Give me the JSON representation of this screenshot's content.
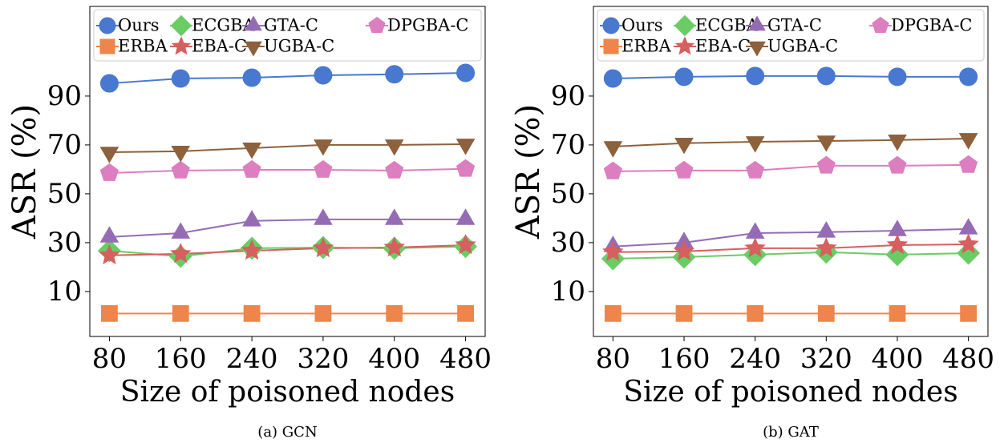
{
  "chart_data": [
    {
      "type": "line",
      "caption": "(a) GCN",
      "xlabel": "Size of poisoned nodes",
      "ylabel": "ASR (%)",
      "x": [
        80,
        160,
        240,
        320,
        400,
        480
      ],
      "xlim": [
        58,
        502
      ],
      "xticks": [
        80,
        160,
        240,
        320,
        400,
        480
      ],
      "ylim": [
        -8.4,
        126.7
      ],
      "yticks": [
        10,
        30,
        50,
        70,
        90
      ],
      "legend": "upper center",
      "grid": false,
      "series": [
        {
          "name": "Ours",
          "color": "#4878d0",
          "marker": "circle",
          "values": [
            95.2,
            97.2,
            97.5,
            98.5,
            98.9,
            99.5
          ]
        },
        {
          "name": "ECGBA",
          "color": "#6acc64",
          "marker": "diamond",
          "values": [
            26.7,
            24.4,
            27.7,
            28.0,
            27.7,
            28.4
          ]
        },
        {
          "name": "GTA-C",
          "color": "#956cb4",
          "marker": "triangle-up",
          "values": [
            32.3,
            33.9,
            38.9,
            39.5,
            39.5,
            39.5
          ]
        },
        {
          "name": "DPGBA-C",
          "color": "#dc7ec0",
          "marker": "pentagon",
          "values": [
            58.5,
            59.5,
            59.8,
            59.8,
            59.5,
            60.2
          ]
        },
        {
          "name": "ERBA",
          "color": "#ee854a",
          "marker": "square",
          "values": [
            1,
            1,
            1,
            1,
            1,
            1
          ]
        },
        {
          "name": "EBA-C",
          "color": "#d65f5f",
          "marker": "star",
          "values": [
            24.8,
            25.4,
            26.7,
            27.7,
            28.0,
            29.0
          ]
        },
        {
          "name": "UGBA-C",
          "color": "#8c613c",
          "marker": "triangle-down",
          "values": [
            67.0,
            67.4,
            68.7,
            70.0,
            70.0,
            70.3
          ]
        }
      ]
    },
    {
      "type": "line",
      "caption": "(b) GAT",
      "xlabel": "Size of poisoned nodes",
      "ylabel": "ASR (%)",
      "x": [
        80,
        160,
        240,
        320,
        400,
        480
      ],
      "xlim": [
        58,
        502
      ],
      "xticks": [
        80,
        160,
        240,
        320,
        400,
        480
      ],
      "ylim": [
        -8.4,
        126.7
      ],
      "yticks": [
        10,
        30,
        50,
        70,
        90
      ],
      "legend": "upper center",
      "grid": false,
      "series": [
        {
          "name": "Ours",
          "color": "#4878d0",
          "marker": "circle",
          "values": [
            97.2,
            97.9,
            98.2,
            98.2,
            97.9,
            97.9
          ]
        },
        {
          "name": "ECGBA",
          "color": "#6acc64",
          "marker": "diamond",
          "values": [
            23.4,
            24.1,
            25.1,
            26.1,
            25.1,
            25.7
          ]
        },
        {
          "name": "GTA-C",
          "color": "#956cb4",
          "marker": "triangle-up",
          "values": [
            28.4,
            30.0,
            33.9,
            34.3,
            34.9,
            35.6
          ]
        },
        {
          "name": "DPGBA-C",
          "color": "#dc7ec0",
          "marker": "pentagon",
          "values": [
            59.2,
            59.5,
            59.5,
            61.5,
            61.5,
            61.8
          ]
        },
        {
          "name": "ERBA",
          "color": "#ee854a",
          "marker": "square",
          "values": [
            1,
            1,
            1,
            1,
            1,
            1
          ]
        },
        {
          "name": "EBA-C",
          "color": "#d65f5f",
          "marker": "star",
          "values": [
            26.1,
            26.4,
            27.7,
            27.7,
            29.0,
            29.3
          ]
        },
        {
          "name": "UGBA-C",
          "color": "#8c613c",
          "marker": "triangle-down",
          "values": [
            69.3,
            70.7,
            71.3,
            71.6,
            72.0,
            72.6
          ]
        }
      ]
    }
  ]
}
